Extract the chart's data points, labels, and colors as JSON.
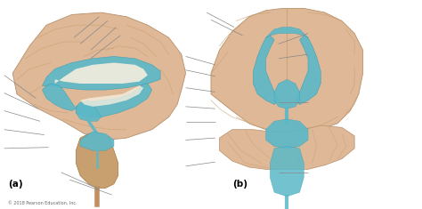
{
  "bg_color": "#ffffff",
  "label_a": "(a)",
  "label_b": "(b)",
  "copyright": "© 2018 Pearson Education, Inc.",
  "line_color": "#888888",
  "fig_width": 4.74,
  "fig_height": 2.35,
  "lines_a": [
    [
      [
        0.175,
        0.82
      ],
      [
        0.235,
        0.92
      ]
    ],
    [
      [
        0.19,
        0.79
      ],
      [
        0.255,
        0.9
      ]
    ],
    [
      [
        0.215,
        0.76
      ],
      [
        0.275,
        0.87
      ]
    ],
    [
      [
        0.215,
        0.72
      ],
      [
        0.285,
        0.83
      ]
    ],
    [
      [
        0.085,
        0.53
      ],
      [
        0.01,
        0.64
      ]
    ],
    [
      [
        0.09,
        0.48
      ],
      [
        0.01,
        0.555
      ]
    ],
    [
      [
        0.095,
        0.42
      ],
      [
        0.01,
        0.47
      ]
    ],
    [
      [
        0.105,
        0.355
      ],
      [
        0.01,
        0.38
      ]
    ],
    [
      [
        0.115,
        0.295
      ],
      [
        0.01,
        0.29
      ]
    ],
    [
      [
        0.145,
        0.175
      ],
      [
        0.235,
        0.095
      ]
    ],
    [
      [
        0.165,
        0.14
      ],
      [
        0.265,
        0.068
      ]
    ]
  ],
  "lines_b": [
    [
      [
        0.555,
        0.87
      ],
      [
        0.49,
        0.94
      ]
    ],
    [
      [
        0.575,
        0.83
      ],
      [
        0.5,
        0.905
      ]
    ],
    [
      [
        0.51,
        0.69
      ],
      [
        0.44,
        0.73
      ]
    ],
    [
      [
        0.51,
        0.635
      ],
      [
        0.44,
        0.665
      ]
    ],
    [
      [
        0.51,
        0.56
      ],
      [
        0.44,
        0.58
      ]
    ],
    [
      [
        0.51,
        0.48
      ],
      [
        0.44,
        0.49
      ]
    ],
    [
      [
        0.51,
        0.415
      ],
      [
        0.44,
        0.415
      ]
    ],
    [
      [
        0.51,
        0.34
      ],
      [
        0.44,
        0.33
      ]
    ],
    [
      [
        0.51,
        0.225
      ],
      [
        0.44,
        0.205
      ]
    ],
    [
      [
        0.66,
        0.79
      ],
      [
        0.73,
        0.84
      ]
    ],
    [
      [
        0.66,
        0.72
      ],
      [
        0.73,
        0.74
      ]
    ],
    [
      [
        0.66,
        0.51
      ],
      [
        0.73,
        0.51
      ]
    ],
    [
      [
        0.66,
        0.175
      ],
      [
        0.73,
        0.175
      ]
    ]
  ]
}
